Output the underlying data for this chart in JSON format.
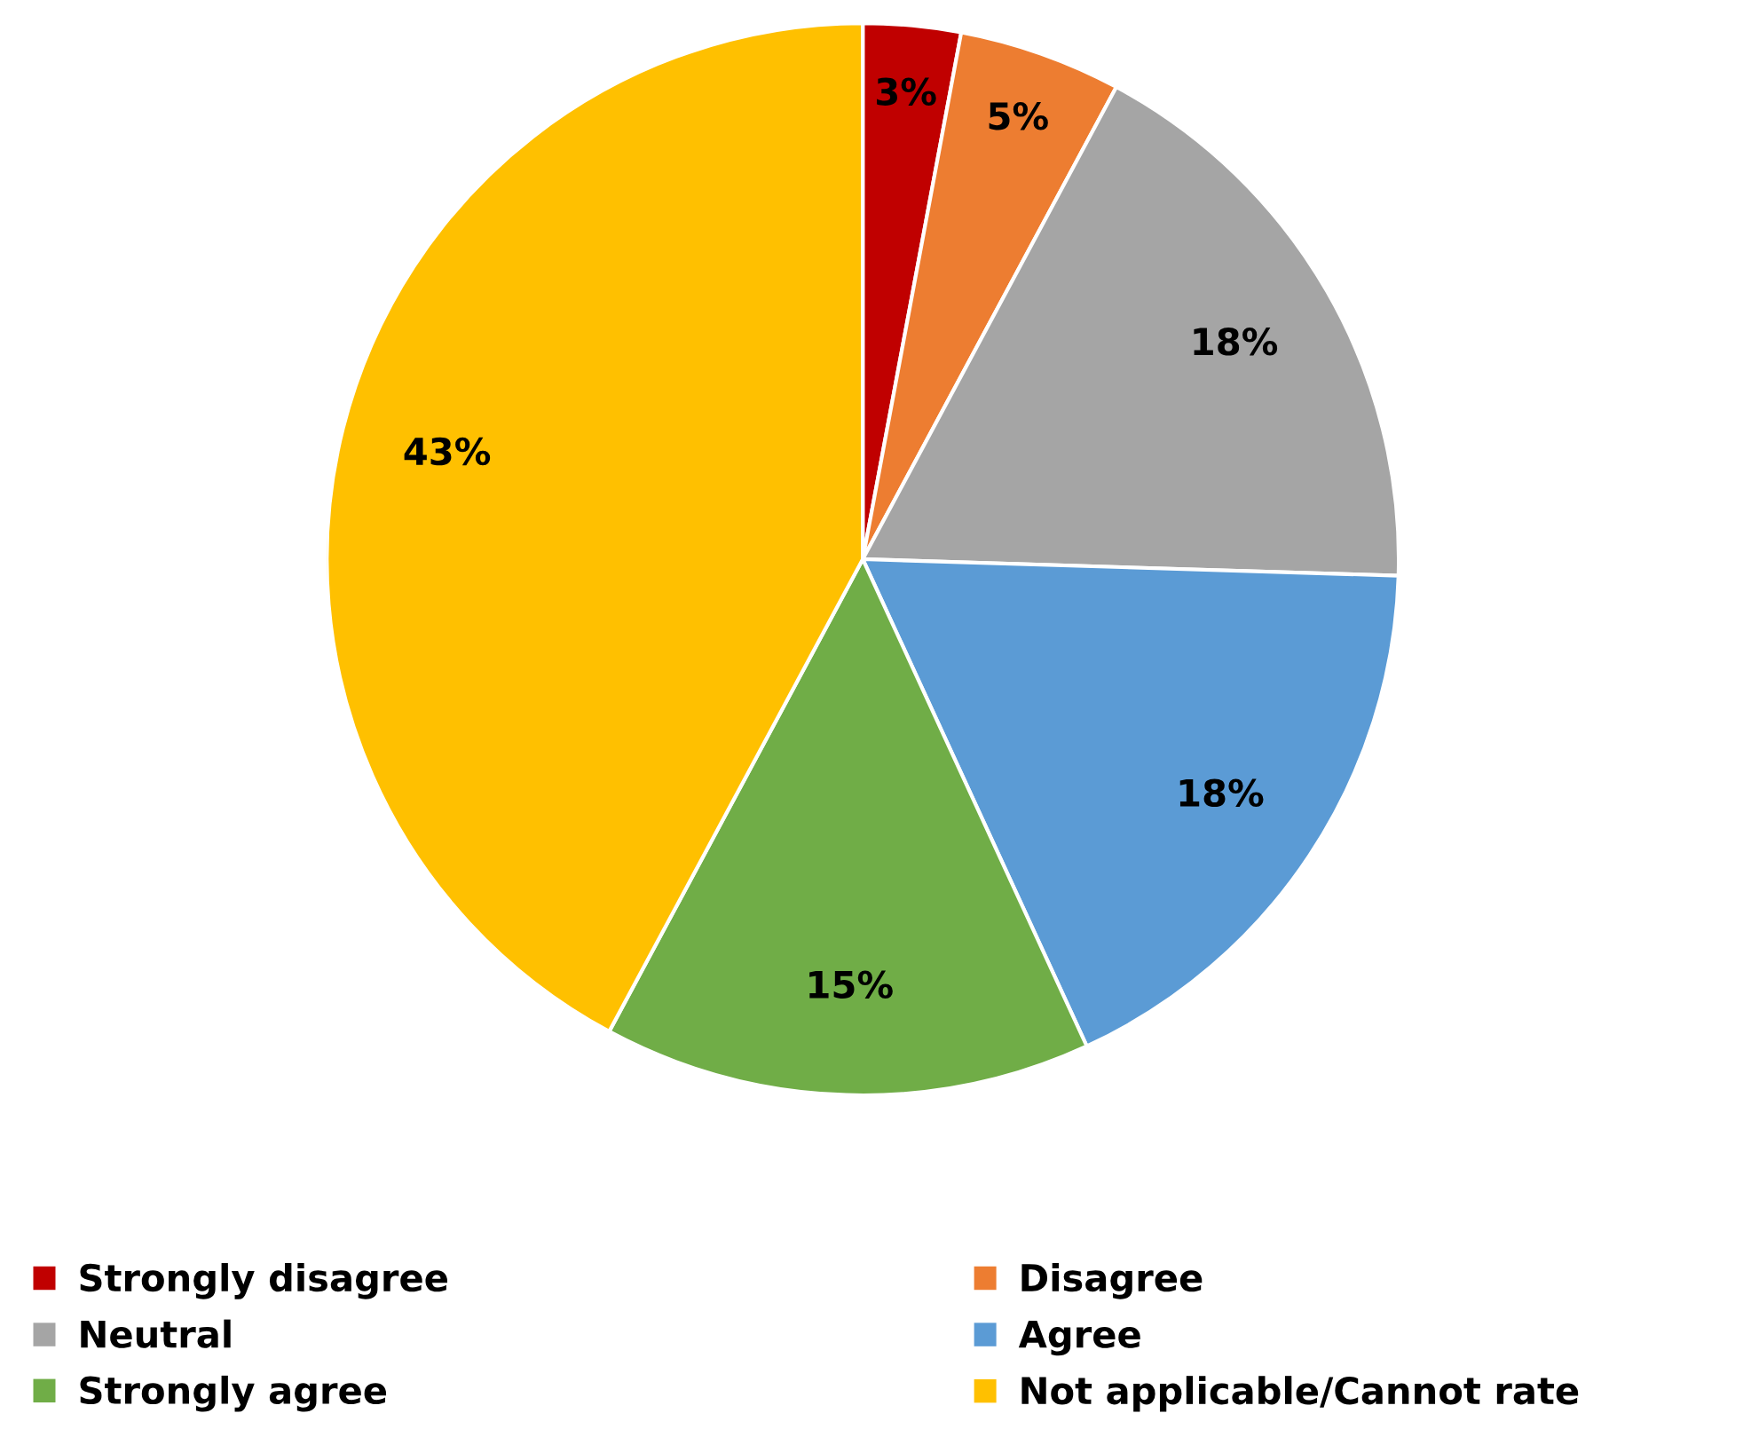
{
  "chart_data": {
    "type": "pie",
    "categories": [
      "Strongly disagree",
      "Disagree",
      "Neutral",
      "Agree",
      "Strongly agree",
      "Not applicable/Cannot rate"
    ],
    "values": [
      3,
      5,
      18,
      18,
      15,
      43
    ],
    "colors": [
      "#c00000",
      "#ed7d31",
      "#a5a5a5",
      "#5b9bd5",
      "#70ad47",
      "#ffc000"
    ],
    "value_labels": [
      "3%",
      "5%",
      "18%",
      "18%",
      "15%",
      "43%"
    ],
    "legend": "bottom"
  }
}
